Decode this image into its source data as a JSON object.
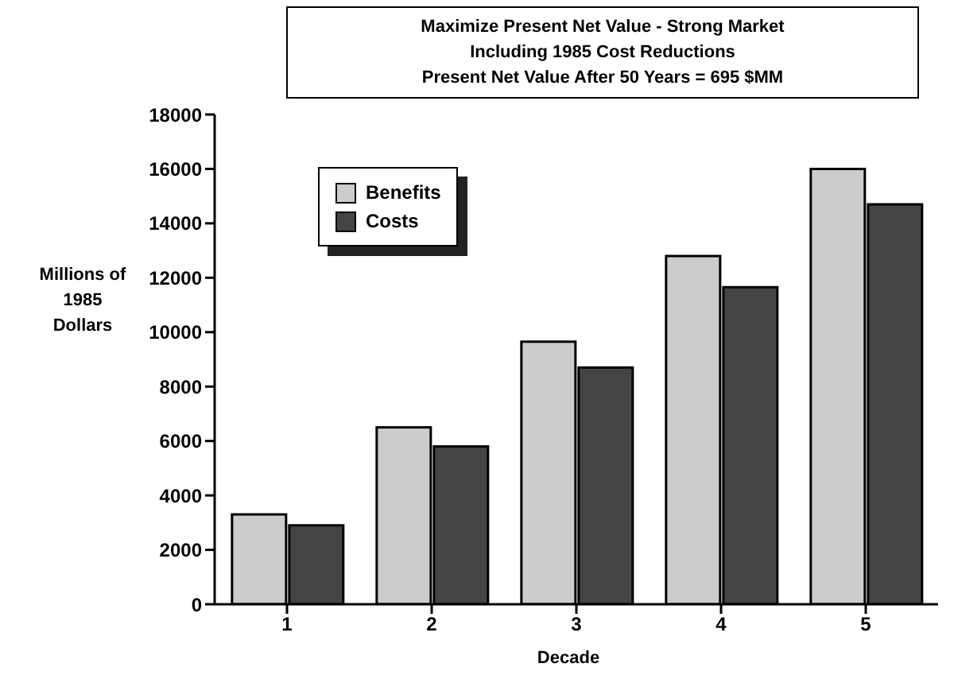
{
  "chart_data": {
    "type": "bar",
    "title": "Maximize Present Net Value - Strong Market",
    "subtitle": "Including 1985 Cost Reductions",
    "annotations": [
      "Present Net Value After 50 Years =  695 $MM"
    ],
    "xlabel": "Decade",
    "ylabel": "Millions of 1985 Dollars",
    "categories": [
      "1",
      "2",
      "3",
      "4",
      "5"
    ],
    "series": [
      {
        "name": "Benefits",
        "color": "#cccccc",
        "values": [
          3300,
          6500,
          9650,
          12800,
          16000
        ]
      },
      {
        "name": "Costs",
        "color": "#444444",
        "values": [
          2900,
          5800,
          8700,
          11650,
          14700
        ]
      }
    ],
    "ylim": [
      0,
      18000
    ],
    "yticks": [
      0,
      2000,
      4000,
      6000,
      8000,
      10000,
      12000,
      14000,
      16000,
      18000
    ],
    "grid": false,
    "legend": "top left"
  }
}
